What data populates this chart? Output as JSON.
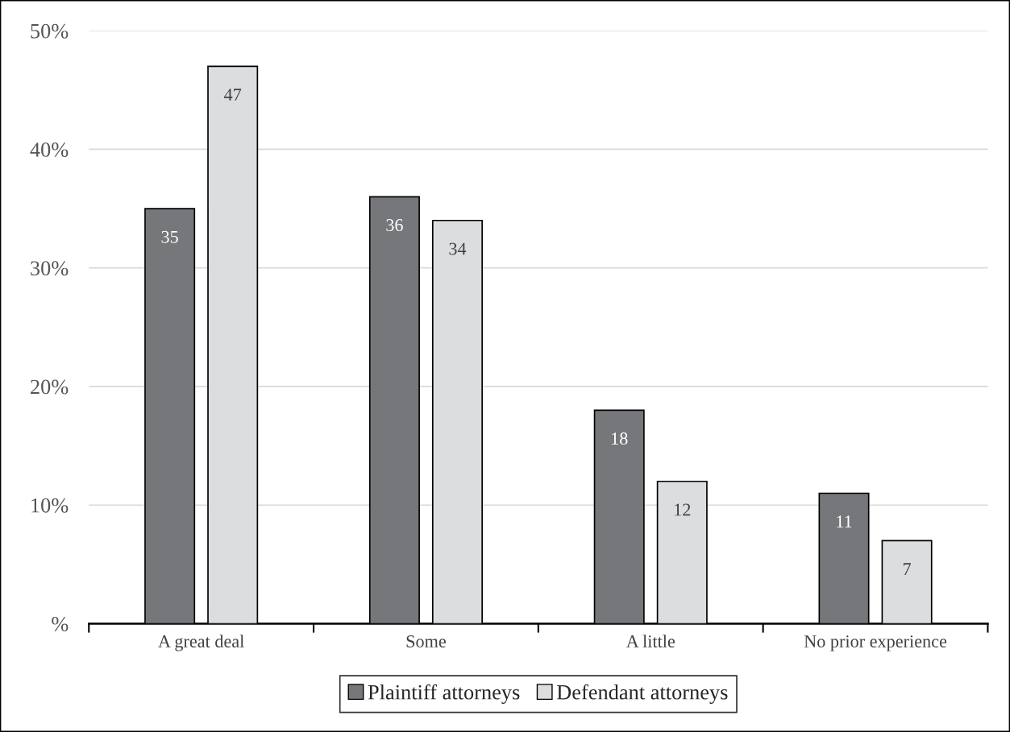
{
  "chart_data": {
    "type": "bar",
    "categories": [
      "A great deal",
      "Some",
      "A little",
      "No prior experience"
    ],
    "series": [
      {
        "name": "Plaintiff attorneys",
        "color": "#76777b",
        "values": [
          35,
          36,
          18,
          11
        ]
      },
      {
        "name": "Defendant attorneys",
        "color": "#dcdddf",
        "values": [
          47,
          34,
          12,
          7
        ]
      }
    ],
    "ylim": [
      0,
      50
    ],
    "yticks": [
      {
        "value": 0,
        "label": "%"
      },
      {
        "value": 10,
        "label": "10%"
      },
      {
        "value": 20,
        "label": "20%"
      },
      {
        "value": 30,
        "label": "30%"
      },
      {
        "value": 40,
        "label": "40%"
      },
      {
        "value": 50,
        "label": "50%"
      }
    ],
    "grid": "y",
    "legend": "bottom",
    "data_labels": true
  }
}
